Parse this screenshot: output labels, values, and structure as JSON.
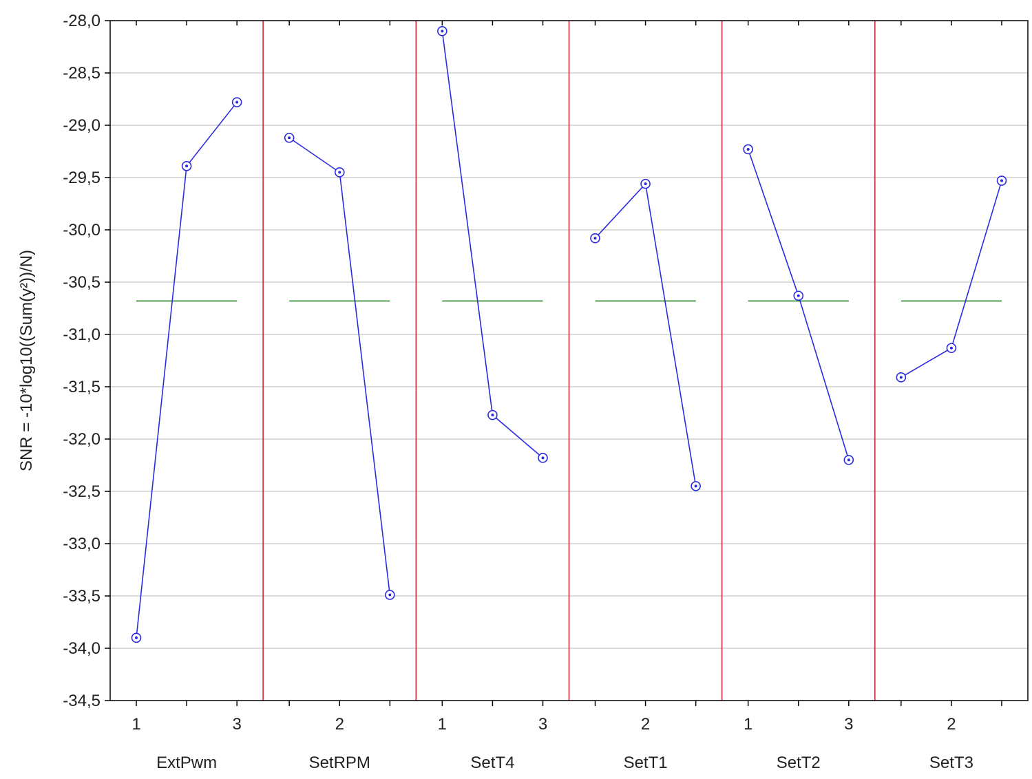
{
  "chart_data": {
    "type": "line",
    "ylabel": "SNR = -10*log10((Sum(y²))/N)",
    "ylim": [
      -34.5,
      -28.0
    ],
    "yticks": [
      -28.0,
      -28.5,
      -29.0,
      -29.5,
      -30.0,
      -30.5,
      -31.0,
      -31.5,
      -32.0,
      -32.5,
      -33.0,
      -33.5,
      -34.0,
      -34.5
    ],
    "ytick_labels": [
      "-28,0",
      "-28,5",
      "-29,0",
      "-29,5",
      "-30,0",
      "-30,5",
      "-31,0",
      "-31,5",
      "-32,0",
      "-32,5",
      "-33,0",
      "-33,5",
      "-34,0",
      "-34,5"
    ],
    "grid": true,
    "mean_line": -30.68,
    "colors": {
      "series": "#2a2ae0",
      "mean": "#1a7a1a",
      "separator": "#cc1f2a",
      "grid": "#cfcfcf",
      "frame": "#000000"
    },
    "factors": [
      {
        "name": "ExtPwm",
        "levels": [
          1,
          2,
          3
        ],
        "level_labels": [
          "1",
          "",
          "3"
        ],
        "values": [
          -33.9,
          -29.39,
          -28.78
        ]
      },
      {
        "name": "SetRPM",
        "levels": [
          1,
          2,
          3
        ],
        "level_labels": [
          "",
          "2",
          ""
        ],
        "values": [
          -29.12,
          -29.45,
          -33.49
        ]
      },
      {
        "name": "SetT4",
        "levels": [
          1,
          2,
          3
        ],
        "level_labels": [
          "1",
          "",
          "3"
        ],
        "values": [
          -28.1,
          -31.77,
          -32.18
        ]
      },
      {
        "name": "SetT1",
        "levels": [
          1,
          2,
          3
        ],
        "level_labels": [
          "",
          "2",
          ""
        ],
        "values": [
          -30.08,
          -29.56,
          -32.45
        ]
      },
      {
        "name": "SetT2",
        "levels": [
          1,
          2,
          3
        ],
        "level_labels": [
          "1",
          "",
          "3"
        ],
        "values": [
          -29.23,
          -30.63,
          -32.2
        ]
      },
      {
        "name": "SetT3",
        "levels": [
          1,
          2,
          3
        ],
        "level_labels": [
          "",
          "2",
          ""
        ],
        "values": [
          -31.41,
          -31.13,
          -29.53
        ]
      }
    ]
  }
}
